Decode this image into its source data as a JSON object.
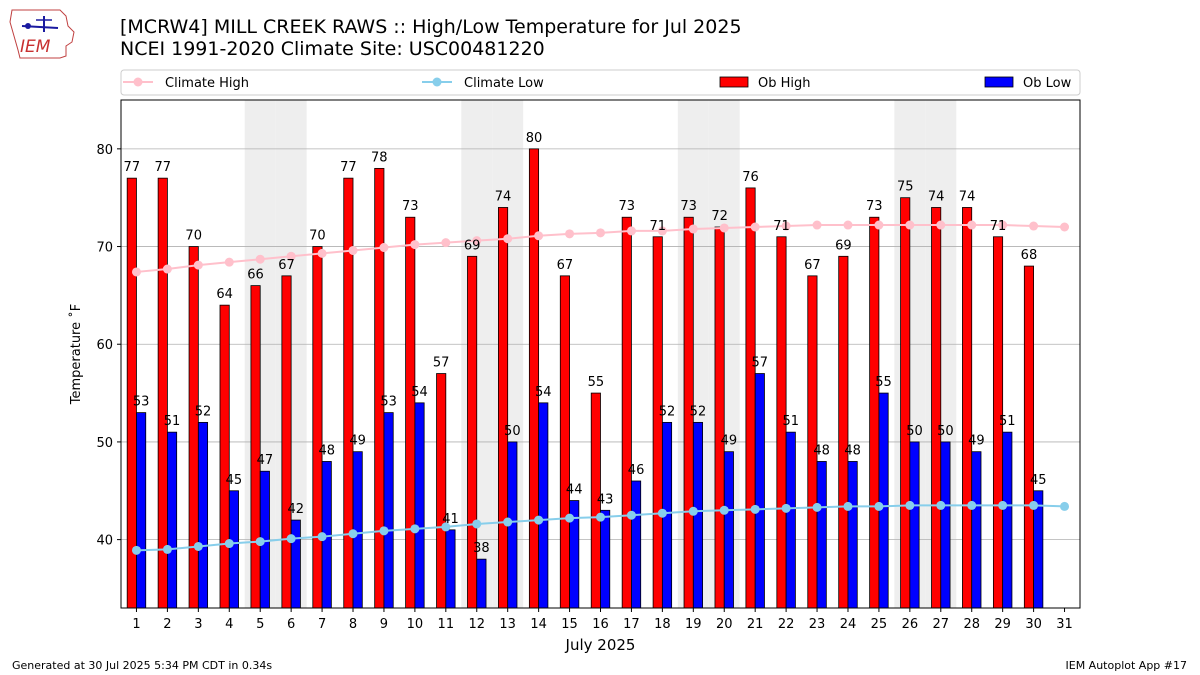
{
  "title": {
    "line1": "[MCRW4] MILL CREEK RAWS :: High/Low Temperature for Jul 2025",
    "line2": "NCEI 1991-2020 Climate Site: USC00481220"
  },
  "logo_text": "IEM",
  "footer": {
    "left": "Generated at 30 Jul 2025 5:34 PM CDT in 0.34s",
    "right": "IEM Autoplot App #17"
  },
  "colors": {
    "ob_high": "#ff0000",
    "ob_low": "#0000ff",
    "climate_high": "#ffc0cb",
    "climate_low": "#87ceeb",
    "weekend_shade": "#eeeeee",
    "grid": "#b0b0b0"
  },
  "chart_data": {
    "type": "bar",
    "xlabel": "July 2025",
    "ylabel": "Temperature ˚F",
    "ylim": [
      33,
      85
    ],
    "xlim": [
      0.5,
      31.5
    ],
    "yticks": [
      40,
      50,
      60,
      70,
      80
    ],
    "x": [
      1,
      2,
      3,
      4,
      5,
      6,
      7,
      8,
      9,
      10,
      11,
      12,
      13,
      14,
      15,
      16,
      17,
      18,
      19,
      20,
      21,
      22,
      23,
      24,
      25,
      26,
      27,
      28,
      29,
      30,
      31
    ],
    "grid": "horizontal",
    "legend_position": "top",
    "weekend_days": [
      5,
      6,
      12,
      13,
      19,
      20,
      26,
      27
    ],
    "series": [
      {
        "name": "Climate High",
        "type": "line",
        "values": [
          67.4,
          67.7,
          68.1,
          68.4,
          68.7,
          69.0,
          69.3,
          69.6,
          69.9,
          70.2,
          70.4,
          70.6,
          70.8,
          71.1,
          71.3,
          71.4,
          71.6,
          71.6,
          71.8,
          71.9,
          72.0,
          72.1,
          72.2,
          72.2,
          72.2,
          72.2,
          72.2,
          72.2,
          72.2,
          72.1,
          72.0
        ]
      },
      {
        "name": "Climate Low",
        "type": "line",
        "values": [
          38.9,
          39.0,
          39.3,
          39.6,
          39.8,
          40.1,
          40.3,
          40.6,
          40.9,
          41.1,
          41.3,
          41.6,
          41.8,
          42.0,
          42.2,
          42.3,
          42.5,
          42.7,
          42.9,
          43.0,
          43.1,
          43.2,
          43.3,
          43.4,
          43.4,
          43.5,
          43.5,
          43.5,
          43.5,
          43.5,
          43.4
        ]
      },
      {
        "name": "Ob High",
        "type": "bar",
        "values": [
          77,
          77,
          70,
          64,
          66,
          67,
          70,
          77,
          78,
          73,
          57,
          69,
          74,
          80,
          67,
          55,
          73,
          71,
          73,
          72,
          76,
          71,
          67,
          69,
          73,
          75,
          74,
          74,
          71,
          68,
          null
        ]
      },
      {
        "name": "Ob Low",
        "type": "bar",
        "values": [
          53,
          51,
          52,
          45,
          47,
          42,
          48,
          49,
          53,
          54,
          41,
          38,
          50,
          54,
          44,
          43,
          46,
          52,
          52,
          49,
          57,
          51,
          48,
          48,
          55,
          50,
          50,
          49,
          51,
          45,
          null
        ]
      }
    ]
  }
}
